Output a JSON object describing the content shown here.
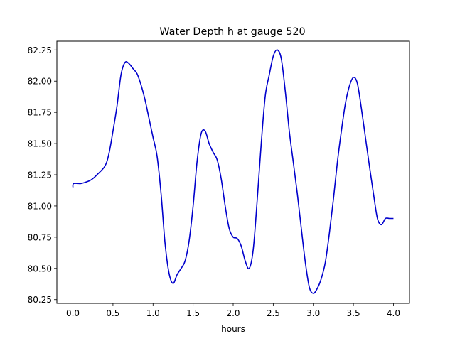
{
  "chart_data": {
    "type": "line",
    "title": "Water Depth h at gauge 520",
    "xlabel": "hours",
    "ylabel": "",
    "xlim": [
      -0.2,
      4.2
    ],
    "ylim": [
      80.22,
      82.32
    ],
    "grid": false,
    "x_ticks": [
      0.0,
      0.5,
      1.0,
      1.5,
      2.0,
      2.5,
      3.0,
      3.5,
      4.0
    ],
    "x_tick_labels": [
      "0.0",
      "0.5",
      "1.0",
      "1.5",
      "2.0",
      "2.5",
      "3.0",
      "3.5",
      "4.0"
    ],
    "y_ticks": [
      80.25,
      80.5,
      80.75,
      81.0,
      81.25,
      81.5,
      81.75,
      82.0,
      82.25
    ],
    "y_tick_labels": [
      "80.25",
      "80.50",
      "80.75",
      "81.00",
      "81.25",
      "81.50",
      "81.75",
      "82.00",
      "82.25"
    ],
    "series": [
      {
        "color": "#0000cc",
        "x": [
          0.0,
          0.01,
          0.1,
          0.2,
          0.25,
          0.3,
          0.4,
          0.45,
          0.5,
          0.55,
          0.6,
          0.65,
          0.7,
          0.75,
          0.8,
          0.85,
          0.9,
          0.95,
          1.0,
          1.05,
          1.1,
          1.15,
          1.2,
          1.25,
          1.3,
          1.35,
          1.4,
          1.45,
          1.5,
          1.55,
          1.6,
          1.65,
          1.7,
          1.75,
          1.8,
          1.85,
          1.9,
          1.95,
          2.0,
          2.05,
          2.1,
          2.15,
          2.2,
          2.25,
          2.3,
          2.35,
          2.4,
          2.45,
          2.5,
          2.55,
          2.6,
          2.65,
          2.7,
          2.75,
          2.8,
          2.85,
          2.9,
          2.95,
          3.0,
          3.05,
          3.1,
          3.15,
          3.2,
          3.25,
          3.3,
          3.35,
          3.4,
          3.45,
          3.5,
          3.55,
          3.6,
          3.65,
          3.7,
          3.75,
          3.8,
          3.85,
          3.9,
          3.95,
          4.0
        ],
        "y": [
          81.15,
          81.18,
          81.18,
          81.2,
          81.22,
          81.25,
          81.32,
          81.42,
          81.6,
          81.8,
          82.05,
          82.15,
          82.14,
          82.1,
          82.06,
          81.97,
          81.85,
          81.7,
          81.55,
          81.4,
          81.1,
          80.7,
          80.46,
          80.38,
          80.45,
          80.5,
          80.56,
          80.72,
          81.0,
          81.36,
          81.58,
          81.6,
          81.5,
          81.43,
          81.37,
          81.22,
          81.0,
          80.82,
          80.75,
          80.74,
          80.68,
          80.56,
          80.5,
          80.65,
          81.05,
          81.5,
          81.88,
          82.05,
          82.2,
          82.25,
          82.18,
          81.92,
          81.6,
          81.35,
          81.1,
          80.82,
          80.55,
          80.35,
          80.3,
          80.34,
          80.42,
          80.55,
          80.78,
          81.05,
          81.35,
          81.6,
          81.82,
          81.96,
          82.03,
          81.98,
          81.78,
          81.55,
          81.32,
          81.1,
          80.9,
          80.85,
          80.9,
          80.9,
          80.9
        ]
      }
    ]
  }
}
